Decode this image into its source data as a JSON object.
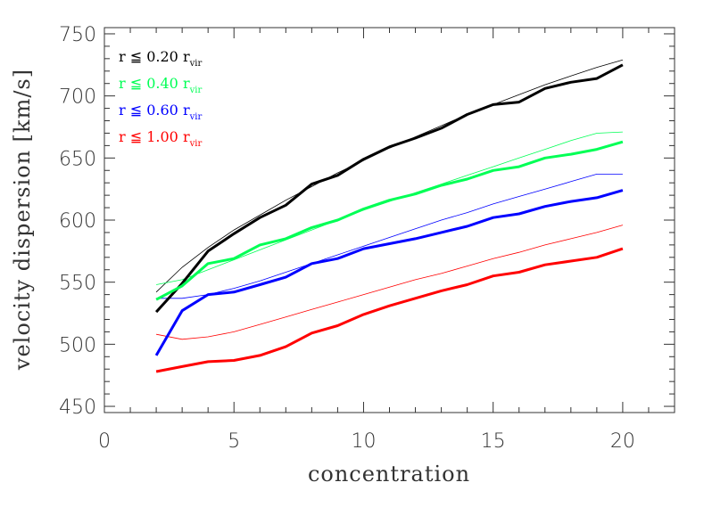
{
  "chart_data": {
    "type": "line",
    "xlabel": "concentration",
    "ylabel": "velocity dispersion [km/s]",
    "xlim": [
      0,
      22
    ],
    "ylim": [
      445,
      755
    ],
    "xticks": [
      0,
      5,
      10,
      15,
      20
    ],
    "yticks": [
      450,
      500,
      550,
      600,
      650,
      700,
      750
    ],
    "legend_placement": "top-left",
    "grid": false,
    "x": [
      2,
      3,
      4,
      5,
      6,
      7,
      8,
      9,
      10,
      11,
      12,
      13,
      14,
      15,
      16,
      17,
      18,
      19,
      20
    ],
    "series": [
      {
        "name": "r ≦ 0.20 r",
        "name_sub": "vir",
        "color": "#000000",
        "values": [
          526,
          549,
          575,
          589,
          602,
          612,
          629,
          636,
          649,
          659,
          666,
          674,
          685,
          693,
          695,
          706,
          711,
          714,
          725
        ],
        "fit": [
          542,
          562,
          578,
          592,
          604,
          616,
          627,
          638,
          648,
          658,
          667,
          676,
          685,
          693,
          701,
          709,
          716,
          723,
          729
        ]
      },
      {
        "name": "r ≦ 0.40 r",
        "name_sub": "vir",
        "color": "#00ff55",
        "values": [
          536,
          547,
          565,
          569,
          580,
          585,
          594,
          600,
          609,
          616,
          621,
          628,
          633,
          640,
          643,
          650,
          653,
          657,
          663
        ],
        "fit": [
          548,
          552,
          560,
          568,
          576,
          584,
          592,
          600,
          608,
          615,
          622,
          629,
          636,
          643,
          650,
          657,
          664,
          670,
          671
        ]
      },
      {
        "name": "r ≦ 0.60 r",
        "name_sub": "vir",
        "color": "#0000ff",
        "values": [
          491,
          527,
          540,
          542,
          548,
          554,
          565,
          569,
          577,
          581,
          585,
          590,
          595,
          602,
          605,
          611,
          615,
          618,
          624
        ],
        "fit": [
          537,
          537,
          540,
          545,
          551,
          558,
          565,
          572,
          579,
          586,
          593,
          600,
          606,
          613,
          619,
          625,
          631,
          637,
          637
        ]
      },
      {
        "name": "r ≦ 1.00 r",
        "name_sub": "vir",
        "color": "#ff0000",
        "values": [
          478,
          482,
          486,
          487,
          491,
          498,
          509,
          515,
          524,
          531,
          537,
          543,
          548,
          555,
          558,
          564,
          567,
          570,
          577
        ],
        "fit": [
          508,
          504,
          506,
          510,
          516,
          522,
          528,
          534,
          540,
          546,
          552,
          557,
          563,
          569,
          574,
          580,
          585,
          590,
          596
        ]
      }
    ]
  }
}
